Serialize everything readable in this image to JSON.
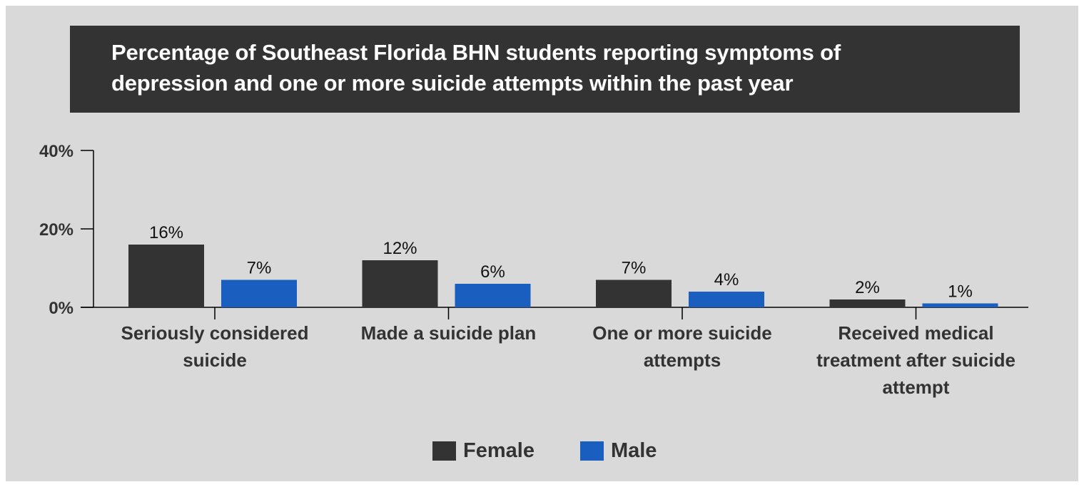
{
  "colors": {
    "female": "#333333",
    "male": "#1a5ebf",
    "background": "#d9d9d9",
    "text": "#333333"
  },
  "chart_data": {
    "type": "bar",
    "title_lines": [
      "Percentage of Southeast Florida BHN students reporting symptoms of",
      "depression and one or more suicide attempts within the past year"
    ],
    "categories": [
      [
        "Seriously considered",
        "suicide"
      ],
      [
        "Made a suicide plan"
      ],
      [
        "One or more suicide",
        "attempts"
      ],
      [
        "Received medical",
        "treatment after suicide",
        "attempt"
      ]
    ],
    "series": [
      {
        "name": "Female",
        "values": [
          16,
          12,
          7,
          2
        ],
        "labels": [
          "16%",
          "12%",
          "7%",
          "2%"
        ],
        "color": "#333333"
      },
      {
        "name": "Male",
        "values": [
          7,
          6,
          4,
          1
        ],
        "labels": [
          "7%",
          "6%",
          "4%",
          "1%"
        ],
        "color": "#1a5ebf"
      }
    ],
    "y_ticks": [
      {
        "value": 0,
        "label": "0%"
      },
      {
        "value": 20,
        "label": "20%"
      },
      {
        "value": 40,
        "label": "40%"
      }
    ],
    "ylim": [
      0,
      40
    ],
    "legend_position": "bottom-center",
    "grid": false
  }
}
